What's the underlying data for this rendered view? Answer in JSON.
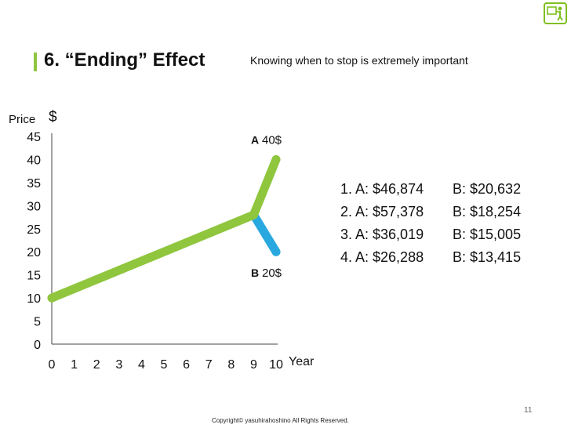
{
  "title": "6. “Ending” Effect",
  "subtitle": "Knowing when to stop is extremely important",
  "logo_icon": "presenter-logo-icon",
  "chart_data": {
    "type": "line",
    "ylabel": "Price",
    "ylabel_unit": "$",
    "xlabel": "Year",
    "xlim": [
      0,
      10
    ],
    "ylim": [
      0,
      45
    ],
    "x_ticks": [
      "0",
      "1",
      "2",
      "3",
      "4",
      "5",
      "6",
      "7",
      "8",
      "9",
      "10"
    ],
    "y_ticks": [
      "0",
      "5",
      "10",
      "15",
      "20",
      "25",
      "30",
      "35",
      "40",
      "45"
    ],
    "grid": false,
    "series": [
      {
        "name": "A",
        "color": "#8fc63e",
        "x": [
          0,
          9,
          10
        ],
        "y": [
          10,
          28,
          40
        ]
      },
      {
        "name": "B",
        "color": "#29a8e0",
        "x": [
          9,
          10
        ],
        "y": [
          28,
          20
        ]
      }
    ],
    "annotations": [
      {
        "series": "A",
        "letter": "A",
        "text": "40$"
      },
      {
        "series": "B",
        "letter": "B",
        "text": "20$"
      }
    ]
  },
  "stats": [
    {
      "a": "1. A: $46,874",
      "b": "B: $20,632"
    },
    {
      "a": "2. A: $57,378",
      "b": "B: $18,254"
    },
    {
      "a": "3. A: $36,019",
      "b": "B: $15,005"
    },
    {
      "a": "4. A: $26,288",
      "b": "B: $13,415"
    }
  ],
  "page_number": "11",
  "copyright": "Copyright© yasuhirahoshino All Rights Reserved."
}
